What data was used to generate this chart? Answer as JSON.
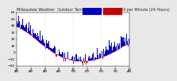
{
  "title": "Milwaukee Weather  Outdoor Temperature vs Wind Chill per Minute (24 Hours)",
  "title_fontsize": 3.5,
  "bg_color": "#e8e8e8",
  "plot_bg_color": "#ffffff",
  "bar_color_pos": "#0000cc",
  "bar_color_neg": "#cc0000",
  "line_color": "#ff0000",
  "ylabel_fontsize": 3.2,
  "xlabel_fontsize": 2.8,
  "ylim": [
    -20,
    60
  ],
  "num_points": 1440,
  "legend_temp_color": "#0000cc",
  "legend_wind_color": "#cc0000",
  "vline_color": "#aaaaaa",
  "vline_positions": [
    0.25,
    0.5,
    0.75
  ]
}
